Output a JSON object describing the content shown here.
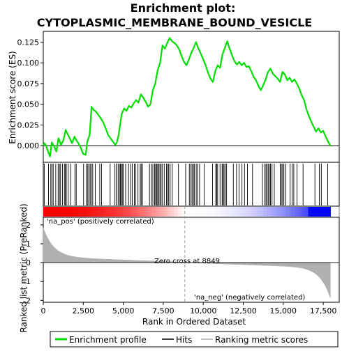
{
  "chart_data": {
    "type": "line",
    "title_line1": "Enrichment plot:",
    "title_line2": "CYTOPLASMIC_MEMBRANE_BOUND_VESICLE",
    "xlabel": "Rank in Ordered Dataset",
    "ylabel_top": "Enrichment score (ES)",
    "ylabel_bottom": "Ranked list metric (PreRanked)",
    "xlim": [
      0,
      18500
    ],
    "es_ylim": [
      -0.02,
      0.138
    ],
    "metric_ylim": [
      -2.1,
      2.4
    ],
    "x_ticks": [
      0,
      2500,
      5000,
      7500,
      10000,
      12500,
      15000,
      17500
    ],
    "x_tick_labels": [
      "0",
      "2,500",
      "5,000",
      "7,500",
      "10,000",
      "12,500",
      "15,000",
      "17,500"
    ],
    "es_ticks": [
      0.0,
      0.025,
      0.05,
      0.075,
      0.1,
      0.125
    ],
    "es_tick_labels": [
      "0.000",
      "0.025",
      "0.050",
      "0.075",
      "0.100",
      "0.125"
    ],
    "metric_ticks": [
      2,
      1,
      0,
      -1,
      -2
    ],
    "metric_tick_labels": [
      "2",
      "1",
      "0",
      "-1",
      "-2"
    ],
    "n_genes": 17950,
    "zero_cross": 8849,
    "zero_cross_label": "Zero cross at 8849",
    "pos_label": "'na_pos' (positively correlated)",
    "neg_label": "'na_neg' (negatively correlated)",
    "colors": {
      "es_line": "#00dd00",
      "hits": "#000000",
      "pos": "#ff0000",
      "neg": "#0000ff",
      "metric_fill": "#b0b0b0",
      "pos_text": "#cc0000",
      "neg_text": "#0000cc"
    },
    "legend": [
      {
        "label": "Enrichment profile",
        "key": "es"
      },
      {
        "label": "Hits",
        "key": "hits"
      },
      {
        "label": "Ranking metric scores",
        "key": "metric"
      }
    ],
    "es_points": [
      [
        0,
        0.0
      ],
      [
        60,
        0.003
      ],
      [
        150,
        0.001
      ],
      [
        280,
        -0.006
      ],
      [
        420,
        -0.013
      ],
      [
        530,
        0.004
      ],
      [
        680,
        -0.001
      ],
      [
        820,
        -0.007
      ],
      [
        950,
        0.009
      ],
      [
        1100,
        0.001
      ],
      [
        1250,
        0.006
      ],
      [
        1400,
        0.019
      ],
      [
        1520,
        0.014
      ],
      [
        1650,
        0.009
      ],
      [
        1800,
        0.003
      ],
      [
        1950,
        0.011
      ],
      [
        2050,
        0.007
      ],
      [
        2200,
        0.003
      ],
      [
        2350,
        -0.003
      ],
      [
        2500,
        -0.01
      ],
      [
        2650,
        -0.011
      ],
      [
        2750,
        0.005
      ],
      [
        2900,
        0.013
      ],
      [
        3020,
        0.047
      ],
      [
        3150,
        0.043
      ],
      [
        3300,
        0.041
      ],
      [
        3450,
        0.037
      ],
      [
        3600,
        0.033
      ],
      [
        3750,
        0.028
      ],
      [
        3900,
        0.021
      ],
      [
        4050,
        0.013
      ],
      [
        4200,
        0.009
      ],
      [
        4350,
        0.005
      ],
      [
        4500,
        0.001
      ],
      [
        4600,
        0.004
      ],
      [
        4700,
        0.012
      ],
      [
        4800,
        0.025
      ],
      [
        4900,
        0.038
      ],
      [
        5050,
        0.045
      ],
      [
        5200,
        0.042
      ],
      [
        5350,
        0.048
      ],
      [
        5500,
        0.046
      ],
      [
        5650,
        0.051
      ],
      [
        5800,
        0.055
      ],
      [
        5950,
        0.052
      ],
      [
        6100,
        0.062
      ],
      [
        6250,
        0.058
      ],
      [
        6400,
        0.053
      ],
      [
        6550,
        0.047
      ],
      [
        6700,
        0.05
      ],
      [
        6850,
        0.067
      ],
      [
        7000,
        0.075
      ],
      [
        7150,
        0.091
      ],
      [
        7300,
        0.1
      ],
      [
        7450,
        0.121
      ],
      [
        7600,
        0.117
      ],
      [
        7750,
        0.124
      ],
      [
        7900,
        0.13
      ],
      [
        8050,
        0.126
      ],
      [
        8200,
        0.124
      ],
      [
        8350,
        0.121
      ],
      [
        8500,
        0.116
      ],
      [
        8650,
        0.108
      ],
      [
        8800,
        0.101
      ],
      [
        8950,
        0.097
      ],
      [
        9100,
        0.104
      ],
      [
        9250,
        0.112
      ],
      [
        9400,
        0.118
      ],
      [
        9550,
        0.125
      ],
      [
        9700,
        0.117
      ],
      [
        9850,
        0.111
      ],
      [
        10000,
        0.104
      ],
      [
        10150,
        0.097
      ],
      [
        10300,
        0.088
      ],
      [
        10450,
        0.081
      ],
      [
        10600,
        0.077
      ],
      [
        10750,
        0.09
      ],
      [
        10900,
        0.097
      ],
      [
        11050,
        0.094
      ],
      [
        11200,
        0.11
      ],
      [
        11350,
        0.118
      ],
      [
        11500,
        0.126
      ],
      [
        11650,
        0.117
      ],
      [
        11800,
        0.109
      ],
      [
        11950,
        0.102
      ],
      [
        12100,
        0.098
      ],
      [
        12250,
        0.101
      ],
      [
        12400,
        0.097
      ],
      [
        12550,
        0.1
      ],
      [
        12700,
        0.095
      ],
      [
        12850,
        0.096
      ],
      [
        13000,
        0.09
      ],
      [
        13150,
        0.083
      ],
      [
        13300,
        0.079
      ],
      [
        13450,
        0.072
      ],
      [
        13600,
        0.067
      ],
      [
        13750,
        0.073
      ],
      [
        13900,
        0.08
      ],
      [
        14050,
        0.089
      ],
      [
        14200,
        0.093
      ],
      [
        14350,
        0.087
      ],
      [
        14500,
        0.084
      ],
      [
        14650,
        0.081
      ],
      [
        14800,
        0.077
      ],
      [
        14950,
        0.089
      ],
      [
        15100,
        0.086
      ],
      [
        15250,
        0.079
      ],
      [
        15400,
        0.082
      ],
      [
        15550,
        0.077
      ],
      [
        15700,
        0.08
      ],
      [
        15850,
        0.075
      ],
      [
        16000,
        0.069
      ],
      [
        16150,
        0.061
      ],
      [
        16300,
        0.055
      ],
      [
        16450,
        0.044
      ],
      [
        16600,
        0.036
      ],
      [
        16750,
        0.029
      ],
      [
        16900,
        0.023
      ],
      [
        17050,
        0.017
      ],
      [
        17200,
        0.021
      ],
      [
        17350,
        0.016
      ],
      [
        17500,
        0.018
      ],
      [
        17650,
        0.011
      ],
      [
        17800,
        0.005
      ],
      [
        17950,
        0.0
      ]
    ],
    "hit_positions": [
      60,
      330,
      470,
      540,
      620,
      780,
      930,
      1010,
      1080,
      1200,
      1320,
      1380,
      1440,
      1560,
      1700,
      1980,
      2060,
      2520,
      2680,
      2780,
      2850,
      2930,
      3000,
      3090,
      3250,
      3530,
      3640,
      4180,
      4480,
      4560,
      4680,
      4760,
      4820,
      4880,
      4940,
      5000,
      5150,
      5330,
      5460,
      5560,
      5700,
      5760,
      5920,
      6060,
      6120,
      6200,
      6640,
      6760,
      6850,
      6960,
      7020,
      7090,
      7150,
      7220,
      7290,
      7360,
      7430,
      7560,
      7700,
      7780,
      7840,
      7930,
      8060,
      8450,
      8900,
      9130,
      9230,
      9300,
      9380,
      9440,
      9560,
      9640,
      9770,
      10060,
      10580,
      10780,
      10840,
      10900,
      11050,
      11180,
      11240,
      11300,
      11380,
      11460,
      11880,
      12080,
      12240,
      12420,
      12580,
      12760,
      13080,
      13700,
      13840,
      13920,
      13980,
      14060,
      14130,
      14200,
      14300,
      14440,
      14820,
      14880,
      14960,
      15040,
      15160,
      15430,
      15560,
      15660,
      15860,
      16240,
      16980,
      17260,
      17380,
      17780
    ]
  }
}
